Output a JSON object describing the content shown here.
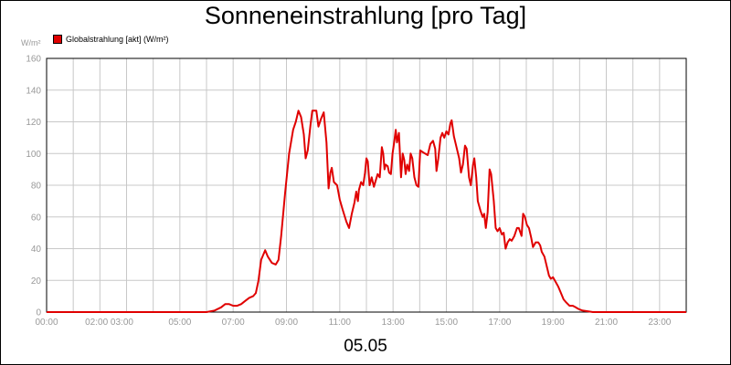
{
  "chart_data": {
    "type": "line",
    "title": "Sonneneinstrahlung [pro Tag]",
    "ylabel": "W/m²",
    "xlabel": "05.05",
    "ylim": [
      0,
      160
    ],
    "xlim": [
      0,
      24
    ],
    "yticks": [
      0,
      20,
      40,
      60,
      80,
      100,
      120,
      140,
      160
    ],
    "xticks": [
      {
        "pos": 0,
        "label": "00:00"
      },
      {
        "pos": 2.35,
        "label": "02:00 03:00"
      },
      {
        "pos": 5,
        "label": "05:00"
      },
      {
        "pos": 7,
        "label": "07:00"
      },
      {
        "pos": 9,
        "label": "09:00"
      },
      {
        "pos": 11,
        "label": "11:00"
      },
      {
        "pos": 13,
        "label": "13:00"
      },
      {
        "pos": 15,
        "label": "15:00"
      },
      {
        "pos": 17,
        "label": "17:00"
      },
      {
        "pos": 19,
        "label": "19:00"
      },
      {
        "pos": 21,
        "label": "21:00"
      },
      {
        "pos": 23,
        "label": "23:00"
      }
    ],
    "grid": true,
    "legend_position": "top-left",
    "series": [
      {
        "name": "Globalstrahlung [akt] (W/m²)",
        "color": "#e00000",
        "points": [
          [
            0,
            0
          ],
          [
            6.0,
            0
          ],
          [
            6.3,
            1
          ],
          [
            6.55,
            3
          ],
          [
            6.7,
            5
          ],
          [
            6.85,
            5
          ],
          [
            7.0,
            4
          ],
          [
            7.15,
            4
          ],
          [
            7.3,
            5
          ],
          [
            7.45,
            7
          ],
          [
            7.6,
            9
          ],
          [
            7.75,
            10
          ],
          [
            7.85,
            12
          ],
          [
            7.95,
            20
          ],
          [
            8.05,
            33
          ],
          [
            8.2,
            39
          ],
          [
            8.3,
            35
          ],
          [
            8.45,
            31
          ],
          [
            8.6,
            30
          ],
          [
            8.7,
            33
          ],
          [
            8.8,
            48
          ],
          [
            8.95,
            75
          ],
          [
            9.1,
            100
          ],
          [
            9.25,
            115
          ],
          [
            9.35,
            120
          ],
          [
            9.45,
            127
          ],
          [
            9.55,
            123
          ],
          [
            9.65,
            112
          ],
          [
            9.72,
            97
          ],
          [
            9.8,
            102
          ],
          [
            9.9,
            118
          ],
          [
            9.97,
            127
          ],
          [
            10.05,
            127
          ],
          [
            10.12,
            127
          ],
          [
            10.2,
            117
          ],
          [
            10.3,
            122
          ],
          [
            10.4,
            126
          ],
          [
            10.5,
            107
          ],
          [
            10.58,
            78
          ],
          [
            10.65,
            88
          ],
          [
            10.7,
            91
          ],
          [
            10.78,
            82
          ],
          [
            10.9,
            80
          ],
          [
            11.0,
            71
          ],
          [
            11.1,
            65
          ],
          [
            11.25,
            57
          ],
          [
            11.35,
            53
          ],
          [
            11.45,
            62
          ],
          [
            11.55,
            69
          ],
          [
            11.62,
            76
          ],
          [
            11.68,
            70
          ],
          [
            11.72,
            77
          ],
          [
            11.8,
            82
          ],
          [
            11.88,
            80
          ],
          [
            11.95,
            88
          ],
          [
            12.0,
            97
          ],
          [
            12.05,
            95
          ],
          [
            12.12,
            80
          ],
          [
            12.2,
            85
          ],
          [
            12.28,
            79
          ],
          [
            12.35,
            83
          ],
          [
            12.42,
            87
          ],
          [
            12.5,
            85
          ],
          [
            12.58,
            104
          ],
          [
            12.63,
            100
          ],
          [
            12.68,
            90
          ],
          [
            12.72,
            93
          ],
          [
            12.8,
            92
          ],
          [
            12.85,
            88
          ],
          [
            12.92,
            87
          ],
          [
            12.98,
            100
          ],
          [
            13.05,
            108
          ],
          [
            13.1,
            115
          ],
          [
            13.15,
            107
          ],
          [
            13.22,
            113
          ],
          [
            13.3,
            85
          ],
          [
            13.36,
            100
          ],
          [
            13.42,
            96
          ],
          [
            13.47,
            87
          ],
          [
            13.53,
            93
          ],
          [
            13.6,
            89
          ],
          [
            13.66,
            100
          ],
          [
            13.72,
            97
          ],
          [
            13.8,
            85
          ],
          [
            13.88,
            80
          ],
          [
            13.95,
            79
          ],
          [
            14.02,
            102
          ],
          [
            14.1,
            101
          ],
          [
            14.2,
            100
          ],
          [
            14.3,
            99
          ],
          [
            14.4,
            106
          ],
          [
            14.5,
            108
          ],
          [
            14.58,
            103
          ],
          [
            14.63,
            89
          ],
          [
            14.7,
            97
          ],
          [
            14.78,
            110
          ],
          [
            14.85,
            113
          ],
          [
            14.92,
            110
          ],
          [
            15.0,
            114
          ],
          [
            15.08,
            112
          ],
          [
            15.15,
            119
          ],
          [
            15.2,
            121
          ],
          [
            15.28,
            111
          ],
          [
            15.38,
            104
          ],
          [
            15.48,
            97
          ],
          [
            15.55,
            88
          ],
          [
            15.62,
            93
          ],
          [
            15.7,
            105
          ],
          [
            15.76,
            103
          ],
          [
            15.85,
            85
          ],
          [
            15.92,
            80
          ],
          [
            16.0,
            93
          ],
          [
            16.05,
            97
          ],
          [
            16.12,
            85
          ],
          [
            16.18,
            70
          ],
          [
            16.28,
            64
          ],
          [
            16.36,
            60
          ],
          [
            16.42,
            62
          ],
          [
            16.48,
            53
          ],
          [
            16.55,
            63
          ],
          [
            16.62,
            90
          ],
          [
            16.68,
            87
          ],
          [
            16.78,
            70
          ],
          [
            16.85,
            53
          ],
          [
            16.92,
            51
          ],
          [
            17.0,
            53
          ],
          [
            17.08,
            49
          ],
          [
            17.15,
            50
          ],
          [
            17.22,
            40
          ],
          [
            17.3,
            44
          ],
          [
            17.38,
            46
          ],
          [
            17.45,
            45
          ],
          [
            17.55,
            48
          ],
          [
            17.65,
            53
          ],
          [
            17.72,
            53
          ],
          [
            17.82,
            48
          ],
          [
            17.88,
            62
          ],
          [
            17.95,
            60
          ],
          [
            18.02,
            55
          ],
          [
            18.1,
            53
          ],
          [
            18.18,
            47
          ],
          [
            18.25,
            41
          ],
          [
            18.35,
            44
          ],
          [
            18.45,
            44
          ],
          [
            18.52,
            42
          ],
          [
            18.58,
            38
          ],
          [
            18.68,
            35
          ],
          [
            18.75,
            30
          ],
          [
            18.85,
            23
          ],
          [
            18.92,
            21
          ],
          [
            19.0,
            22
          ],
          [
            19.1,
            19
          ],
          [
            19.2,
            16
          ],
          [
            19.3,
            12
          ],
          [
            19.4,
            8
          ],
          [
            19.5,
            6
          ],
          [
            19.62,
            4
          ],
          [
            19.75,
            4
          ],
          [
            19.85,
            3
          ],
          [
            19.95,
            2
          ],
          [
            20.1,
            1
          ],
          [
            20.3,
            0.5
          ],
          [
            20.5,
            0
          ],
          [
            24,
            0
          ]
        ]
      }
    ]
  }
}
